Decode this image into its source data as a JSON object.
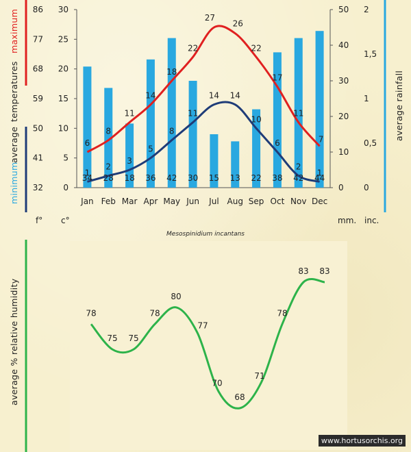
{
  "chart_data": [
    {
      "type": "line",
      "subtitle": "Mesospinidium incantans",
      "categories": [
        "Jan",
        "Feb",
        "Mar",
        "Apr",
        "May",
        "Jun",
        "Jul",
        "Aug",
        "Sep",
        "Oct",
        "Nov",
        "Dec"
      ],
      "left_axis": {
        "f_ticks": [
          "86",
          "77",
          "68",
          "59",
          "50",
          "41",
          "32"
        ],
        "c_ticks": [
          "30",
          "25",
          "20",
          "15",
          "10",
          "5",
          "0"
        ],
        "unit_f": "f°",
        "unit_c": "c°",
        "ylim": [
          0,
          30
        ]
      },
      "right_axis": {
        "mm_ticks": [
          "50",
          "40",
          "30",
          "20",
          "10",
          "0"
        ],
        "inch_ticks": [
          "2",
          "1,5",
          "1",
          "0,5",
          "0"
        ],
        "unit_mm": "mm.",
        "unit_in": "inc.",
        "ylim": [
          0,
          50
        ]
      },
      "ylabel_left_parts": {
        "minimum": "minimum",
        "average": "average",
        "temperatures": "temperatures",
        "maximum": "maximum"
      },
      "ylabel_right": "average rainfall",
      "series": [
        {
          "key": "max",
          "values": [
            6,
            8,
            11,
            14,
            18,
            22,
            27,
            26,
            22,
            17,
            11,
            7
          ]
        },
        {
          "key": "min",
          "values": [
            1,
            2,
            3,
            5,
            8,
            11,
            14,
            14,
            10,
            6,
            2,
            1
          ]
        },
        {
          "key": "rain",
          "values": [
            34,
            28,
            18,
            36,
            42,
            30,
            15,
            13,
            22,
            38,
            42,
            44
          ]
        }
      ],
      "colors": {
        "max": "#e02020",
        "min": "#1f3c78",
        "rain": "#29a8e0"
      }
    },
    {
      "type": "line",
      "categories": [
        "Jan",
        "Feb",
        "Mar",
        "Apr",
        "May",
        "Jun",
        "Jul",
        "Aug",
        "Sep",
        "Oct",
        "Nov",
        "Dec"
      ],
      "ylabel": "average % relative humidity",
      "values": [
        78,
        75,
        75,
        78,
        80,
        77,
        70,
        68,
        71,
        78,
        83,
        83
      ],
      "color": "#2db34a"
    }
  ],
  "watermark": "www.hortusorchis.org"
}
